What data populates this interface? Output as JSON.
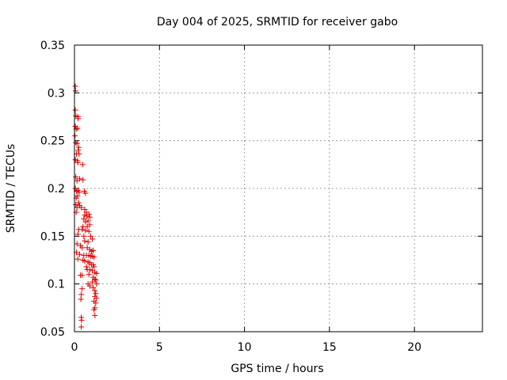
{
  "chart_data": {
    "type": "scatter",
    "title": "Day 004 of 2025, SRMTID for receiver gabo",
    "xlabel": "GPS time / hours",
    "ylabel": "SRMTID / TECUs",
    "xlim": [
      0,
      24
    ],
    "ylim": [
      0.05,
      0.35
    ],
    "xticks": [
      0,
      5,
      10,
      15,
      20
    ],
    "xtick_labels": [
      "0",
      "5",
      "10",
      "15",
      "20"
    ],
    "yticks": [
      0.05,
      0.1,
      0.15,
      0.2,
      0.25,
      0.3,
      0.35
    ],
    "ytick_labels": [
      "0.05",
      "0.1",
      "0.15",
      "0.2",
      "0.25",
      "0.3",
      "0.35"
    ],
    "grid": true,
    "marker": "+",
    "series": [
      {
        "name": "SRMTID",
        "color": "#dd0000",
        "points": [
          [
            0.05,
            0.307
          ],
          [
            0.07,
            0.302
          ],
          [
            0.05,
            0.282
          ],
          [
            0.08,
            0.276
          ],
          [
            0.2,
            0.275
          ],
          [
            0.22,
            0.273
          ],
          [
            0.05,
            0.265
          ],
          [
            0.1,
            0.262
          ],
          [
            0.18,
            0.263
          ],
          [
            0.03,
            0.255
          ],
          [
            0.08,
            0.248
          ],
          [
            0.15,
            0.247
          ],
          [
            0.25,
            0.243
          ],
          [
            0.27,
            0.236
          ],
          [
            0.22,
            0.24
          ],
          [
            0.12,
            0.236
          ],
          [
            0.05,
            0.23
          ],
          [
            0.18,
            0.229
          ],
          [
            0.2,
            0.227
          ],
          [
            0.48,
            0.225
          ],
          [
            0.08,
            0.212
          ],
          [
            0.15,
            0.208
          ],
          [
            0.3,
            0.21
          ],
          [
            0.5,
            0.209
          ],
          [
            0.05,
            0.2
          ],
          [
            0.12,
            0.197
          ],
          [
            0.2,
            0.198
          ],
          [
            0.28,
            0.196
          ],
          [
            0.58,
            0.197
          ],
          [
            0.65,
            0.195
          ],
          [
            0.1,
            0.19
          ],
          [
            0.18,
            0.192
          ],
          [
            0.25,
            0.185
          ],
          [
            0.08,
            0.183
          ],
          [
            0.15,
            0.18
          ],
          [
            0.3,
            0.182
          ],
          [
            0.4,
            0.18
          ],
          [
            0.6,
            0.178
          ],
          [
            0.7,
            0.175
          ],
          [
            0.1,
            0.175
          ],
          [
            0.6,
            0.172
          ],
          [
            0.72,
            0.171
          ],
          [
            0.85,
            0.173
          ],
          [
            0.9,
            0.17
          ],
          [
            0.55,
            0.168
          ],
          [
            0.65,
            0.165
          ],
          [
            0.8,
            0.166
          ],
          [
            0.9,
            0.162
          ],
          [
            0.5,
            0.16
          ],
          [
            0.75,
            0.16
          ],
          [
            0.25,
            0.157
          ],
          [
            0.45,
            0.157
          ],
          [
            0.65,
            0.156
          ],
          [
            0.85,
            0.155
          ],
          [
            0.2,
            0.152
          ],
          [
            0.55,
            0.15
          ],
          [
            0.95,
            0.15
          ],
          [
            1.05,
            0.147
          ],
          [
            0.6,
            0.145
          ],
          [
            0.8,
            0.144
          ],
          [
            0.15,
            0.142
          ],
          [
            0.35,
            0.14
          ],
          [
            0.45,
            0.138
          ],
          [
            0.75,
            0.138
          ],
          [
            0.9,
            0.136
          ],
          [
            1.0,
            0.134
          ],
          [
            1.1,
            0.135
          ],
          [
            0.12,
            0.133
          ],
          [
            0.3,
            0.131
          ],
          [
            0.55,
            0.13
          ],
          [
            0.7,
            0.13
          ],
          [
            0.85,
            0.13
          ],
          [
            0.95,
            0.129
          ],
          [
            1.05,
            0.129
          ],
          [
            1.15,
            0.128
          ],
          [
            0.2,
            0.126
          ],
          [
            0.5,
            0.125
          ],
          [
            0.6,
            0.124
          ],
          [
            0.8,
            0.123
          ],
          [
            0.9,
            0.122
          ],
          [
            1.0,
            0.12
          ],
          [
            1.1,
            0.12
          ],
          [
            1.15,
            0.118
          ],
          [
            0.7,
            0.118
          ],
          [
            0.75,
            0.115
          ],
          [
            0.9,
            0.115
          ],
          [
            1.05,
            0.114
          ],
          [
            1.2,
            0.112
          ],
          [
            1.3,
            0.111
          ],
          [
            0.85,
            0.11
          ],
          [
            0.35,
            0.109
          ],
          [
            0.45,
            0.109
          ],
          [
            1.1,
            0.107
          ],
          [
            1.2,
            0.105
          ],
          [
            1.25,
            0.104
          ],
          [
            1.05,
            0.102
          ],
          [
            1.3,
            0.1
          ],
          [
            0.8,
            0.1
          ],
          [
            0.9,
            0.098
          ],
          [
            1.1,
            0.096
          ],
          [
            0.45,
            0.095
          ],
          [
            1.2,
            0.093
          ],
          [
            1.25,
            0.09
          ],
          [
            0.4,
            0.089
          ],
          [
            1.2,
            0.087
          ],
          [
            1.3,
            0.085
          ],
          [
            0.38,
            0.084
          ],
          [
            1.15,
            0.082
          ],
          [
            1.25,
            0.08
          ],
          [
            1.2,
            0.075
          ],
          [
            1.15,
            0.073
          ],
          [
            1.2,
            0.067
          ],
          [
            0.4,
            0.065
          ],
          [
            0.42,
            0.062
          ],
          [
            0.4,
            0.055
          ]
        ]
      }
    ]
  }
}
